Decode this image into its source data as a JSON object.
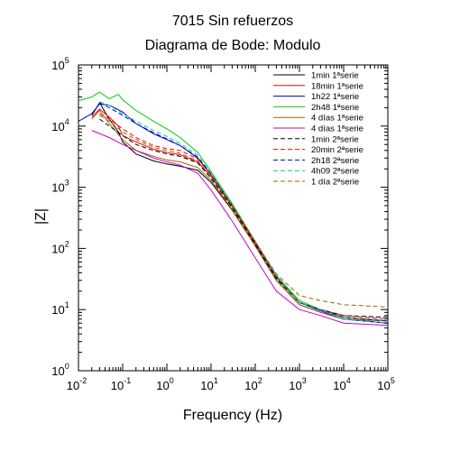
{
  "chart_data": {
    "type": "line",
    "title": "7015 Sin refuerzos",
    "subtitle": "Diagrama de Bode: Modulo",
    "xlabel": "Frequency (Hz)",
    "ylabel": "|Z|",
    "x_scale": "log",
    "y_scale": "log",
    "xlim": [
      0.01,
      100000
    ],
    "ylim": [
      1,
      100000
    ],
    "x_ticks": [
      {
        "base": "10",
        "exp": "-2",
        "value": 0.01
      },
      {
        "base": "10",
        "exp": "-1",
        "value": 0.1
      },
      {
        "base": "10",
        "exp": "0",
        "value": 1
      },
      {
        "base": "10",
        "exp": "1",
        "value": 10
      },
      {
        "base": "10",
        "exp": "2",
        "value": 100
      },
      {
        "base": "10",
        "exp": "3",
        "value": 1000
      },
      {
        "base": "10",
        "exp": "4",
        "value": 10000
      },
      {
        "base": "10",
        "exp": "5",
        "value": 100000
      }
    ],
    "y_ticks": [
      {
        "base": "10",
        "exp": "0",
        "value": 1
      },
      {
        "base": "10",
        "exp": "1",
        "value": 10
      },
      {
        "base": "10",
        "exp": "2",
        "value": 100
      },
      {
        "base": "10",
        "exp": "3",
        "value": 1000
      },
      {
        "base": "10",
        "exp": "4",
        "value": 10000
      },
      {
        "base": "10",
        "exp": "5",
        "value": 100000
      }
    ],
    "grid": false,
    "legend_position": "top-right",
    "series": [
      {
        "name": "1min 1ªserie",
        "color": "#000000",
        "dash": "solid",
        "points": [
          [
            0.02,
            15000
          ],
          [
            0.03,
            24000
          ],
          [
            0.05,
            13000
          ],
          [
            0.08,
            8000
          ],
          [
            0.1,
            5500
          ],
          [
            0.2,
            3500
          ],
          [
            0.5,
            2700
          ],
          [
            1,
            2400
          ],
          [
            2,
            2200
          ],
          [
            5,
            1900
          ],
          [
            10,
            1200
          ],
          [
            30,
            420
          ],
          [
            100,
            110
          ],
          [
            300,
            30
          ],
          [
            1000,
            12
          ],
          [
            3000,
            9
          ],
          [
            10000,
            7
          ],
          [
            100000,
            6
          ]
        ]
      },
      {
        "name": "18min 1ªserie",
        "color": "#ff0000",
        "dash": "solid",
        "points": [
          [
            0.02,
            14000
          ],
          [
            0.03,
            19000
          ],
          [
            0.05,
            14000
          ],
          [
            0.08,
            10000
          ],
          [
            0.1,
            7000
          ],
          [
            0.2,
            5500
          ],
          [
            0.5,
            4200
          ],
          [
            1,
            3700
          ],
          [
            2,
            3400
          ],
          [
            5,
            2600
          ],
          [
            10,
            1500
          ],
          [
            30,
            480
          ],
          [
            100,
            120
          ],
          [
            300,
            33
          ],
          [
            1000,
            13
          ],
          [
            3000,
            10
          ],
          [
            10000,
            7.5
          ],
          [
            100000,
            6.5
          ]
        ]
      },
      {
        "name": "1h22 1ªserie",
        "color": "#0000cc",
        "dash": "solid",
        "points": [
          [
            0.01,
            12000
          ],
          [
            0.02,
            16000
          ],
          [
            0.03,
            23000
          ],
          [
            0.05,
            22000
          ],
          [
            0.1,
            17000
          ],
          [
            0.2,
            11000
          ],
          [
            0.5,
            7500
          ],
          [
            1,
            6000
          ],
          [
            2,
            4800
          ],
          [
            5,
            3000
          ],
          [
            10,
            1600
          ],
          [
            30,
            500
          ],
          [
            100,
            125
          ],
          [
            300,
            34
          ],
          [
            1000,
            13
          ],
          [
            3000,
            9.5
          ],
          [
            10000,
            7
          ],
          [
            100000,
            6
          ]
        ]
      },
      {
        "name": "2h48 1ªserie",
        "color": "#00cc00",
        "dash": "solid",
        "points": [
          [
            0.01,
            26000
          ],
          [
            0.02,
            30000
          ],
          [
            0.03,
            36000
          ],
          [
            0.05,
            28000
          ],
          [
            0.08,
            33000
          ],
          [
            0.1,
            27000
          ],
          [
            0.2,
            18000
          ],
          [
            0.5,
            12000
          ],
          [
            1,
            9000
          ],
          [
            2,
            6500
          ],
          [
            5,
            3700
          ],
          [
            10,
            1800
          ],
          [
            30,
            540
          ],
          [
            100,
            130
          ],
          [
            300,
            36
          ],
          [
            1000,
            14
          ],
          [
            3000,
            10
          ],
          [
            10000,
            7.5
          ],
          [
            100000,
            6.5
          ]
        ]
      },
      {
        "name": "4 días 1ªserie",
        "color": "#996600",
        "dash": "solid",
        "points": [
          [
            0.02,
            13000
          ],
          [
            0.03,
            18000
          ],
          [
            0.05,
            11000
          ],
          [
            0.1,
            6000
          ],
          [
            0.2,
            4000
          ],
          [
            0.5,
            3200
          ],
          [
            1,
            2800
          ],
          [
            2,
            2600
          ],
          [
            5,
            2100
          ],
          [
            10,
            1300
          ],
          [
            30,
            430
          ],
          [
            100,
            110
          ],
          [
            300,
            30
          ],
          [
            1000,
            12
          ],
          [
            3000,
            9
          ],
          [
            10000,
            7
          ],
          [
            100000,
            6.5
          ]
        ]
      },
      {
        "name": "4 días 1ªserie",
        "color": "#cc00cc",
        "dash": "solid",
        "points": [
          [
            0.02,
            8500
          ],
          [
            0.05,
            6500
          ],
          [
            0.1,
            5000
          ],
          [
            0.2,
            4000
          ],
          [
            0.5,
            3000
          ],
          [
            1,
            2600
          ],
          [
            2,
            2300
          ],
          [
            5,
            1700
          ],
          [
            10,
            900
          ],
          [
            30,
            280
          ],
          [
            100,
            70
          ],
          [
            300,
            20
          ],
          [
            1000,
            10
          ],
          [
            3000,
            8
          ],
          [
            10000,
            6
          ],
          [
            100000,
            5.5
          ]
        ]
      },
      {
        "name": "1min 2ªserie",
        "color": "#000000",
        "dash": "dashed",
        "points": [
          [
            0.03,
            13000
          ],
          [
            0.05,
            10000
          ],
          [
            0.1,
            7000
          ],
          [
            0.2,
            5000
          ],
          [
            0.5,
            4000
          ],
          [
            1,
            3500
          ],
          [
            2,
            3200
          ],
          [
            5,
            2500
          ],
          [
            10,
            1400
          ],
          [
            30,
            460
          ],
          [
            100,
            115
          ],
          [
            300,
            32
          ],
          [
            1000,
            13
          ],
          [
            3000,
            10
          ],
          [
            10000,
            8
          ],
          [
            100000,
            7.5
          ]
        ]
      },
      {
        "name": "20min 2ªserie",
        "color": "#ff0000",
        "dash": "dashed",
        "points": [
          [
            0.03,
            16000
          ],
          [
            0.05,
            13000
          ],
          [
            0.1,
            9000
          ],
          [
            0.2,
            6500
          ],
          [
            0.5,
            4800
          ],
          [
            1,
            4300
          ],
          [
            2,
            4000
          ],
          [
            5,
            2900
          ],
          [
            10,
            1600
          ],
          [
            30,
            500
          ],
          [
            100,
            125
          ],
          [
            300,
            34
          ],
          [
            1000,
            13
          ],
          [
            3000,
            10
          ],
          [
            10000,
            8
          ],
          [
            100000,
            7
          ]
        ]
      },
      {
        "name": "2h18 2ªserie",
        "color": "#0000cc",
        "dash": "dashed",
        "points": [
          [
            0.03,
            24000
          ],
          [
            0.05,
            20000
          ],
          [
            0.1,
            15000
          ],
          [
            0.2,
            11000
          ],
          [
            0.5,
            7800
          ],
          [
            1,
            6200
          ],
          [
            2,
            4800
          ],
          [
            5,
            3100
          ],
          [
            10,
            1650
          ],
          [
            30,
            510
          ],
          [
            100,
            128
          ],
          [
            300,
            35
          ],
          [
            1000,
            13
          ],
          [
            3000,
            10
          ],
          [
            10000,
            7.5
          ],
          [
            100000,
            6.5
          ]
        ]
      },
      {
        "name": "4h09 2ªserie",
        "color": "#00cc99",
        "dash": "dashed",
        "points": [
          [
            0.03,
            25000
          ],
          [
            0.05,
            22000
          ],
          [
            0.1,
            16000
          ],
          [
            0.2,
            12000
          ],
          [
            0.5,
            8500
          ],
          [
            1,
            6800
          ],
          [
            2,
            5200
          ],
          [
            5,
            3300
          ],
          [
            10,
            1700
          ],
          [
            30,
            530
          ],
          [
            100,
            130
          ],
          [
            300,
            35
          ],
          [
            1000,
            13
          ],
          [
            3000,
            10
          ],
          [
            10000,
            7
          ],
          [
            100000,
            6
          ]
        ]
      },
      {
        "name": "1 día 2ªserie",
        "color": "#996600",
        "dash": "dashed",
        "points": [
          [
            0.03,
            15000
          ],
          [
            0.05,
            12000
          ],
          [
            0.1,
            8000
          ],
          [
            0.2,
            6000
          ],
          [
            0.5,
            4500
          ],
          [
            1,
            4000
          ],
          [
            2,
            3600
          ],
          [
            5,
            2700
          ],
          [
            10,
            1500
          ],
          [
            30,
            500
          ],
          [
            100,
            130
          ],
          [
            300,
            38
          ],
          [
            1000,
            17
          ],
          [
            3000,
            14
          ],
          [
            10000,
            12
          ],
          [
            100000,
            11
          ]
        ]
      }
    ]
  }
}
